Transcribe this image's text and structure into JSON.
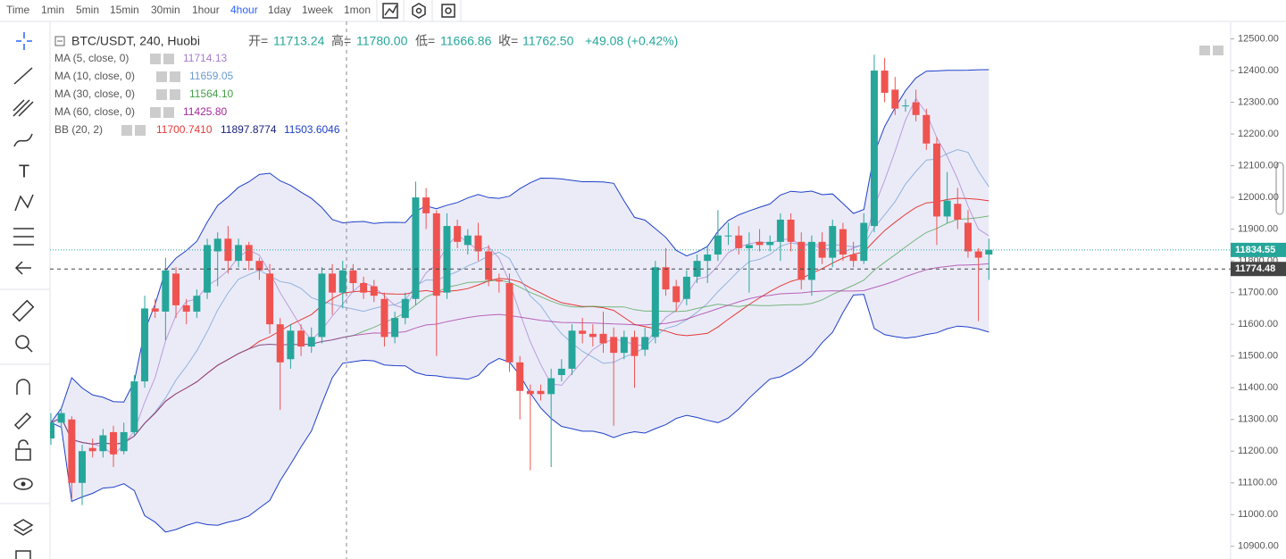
{
  "toolbar": {
    "items": [
      "Time",
      "1min",
      "5min",
      "15min",
      "30min",
      "1hour",
      "4hour",
      "1day",
      "1week",
      "1mon"
    ],
    "active": "4hour"
  },
  "legend": {
    "symbol": "BTC/USDT, 240, Huobi",
    "ohlc": [
      {
        "label": "开=",
        "value": "11713.24"
      },
      {
        "label": "高=",
        "value": "11780.00"
      },
      {
        "label": "低=",
        "value": "11666.86"
      },
      {
        "label": "收=",
        "value": "11762.50"
      }
    ],
    "change": "+49.08 (+0.42%)",
    "indicators": [
      {
        "name": "MA (5, close, 0)",
        "values": [
          "11714.13"
        ],
        "colors": [
          "#a77ccf"
        ]
      },
      {
        "name": "MA (10, close, 0)",
        "values": [
          "11659.05"
        ],
        "colors": [
          "#6b9bd1"
        ]
      },
      {
        "name": "MA (30, close, 0)",
        "values": [
          "11564.10"
        ],
        "colors": [
          "#43a047"
        ]
      },
      {
        "name": "MA (60, close, 0)",
        "values": [
          "11425.80"
        ],
        "colors": [
          "#a4279c"
        ]
      },
      {
        "name": "BB (20, 2)",
        "values": [
          "11700.7410",
          "11897.8774",
          "11503.6046"
        ],
        "colors": [
          "#e53935",
          "#1a237e",
          "#1e40c8"
        ]
      }
    ]
  },
  "chart_data": {
    "type": "candlestick",
    "up_color": "#26a69a",
    "down_color": "#ef5350",
    "ylim": [
      10860,
      12555
    ],
    "yticks": [
      {
        "value": 12500,
        "label": "12500.00"
      },
      {
        "value": 12400,
        "label": "12400.00"
      },
      {
        "value": 12300,
        "label": "12300.00"
      },
      {
        "value": 12200,
        "label": "12200.00"
      },
      {
        "value": 12100,
        "label": "12100.00"
      },
      {
        "value": 12000,
        "label": "12000.00"
      },
      {
        "value": 11900,
        "label": "11900.00"
      },
      {
        "value": 11800,
        "label": "11800.00"
      },
      {
        "value": 11700,
        "label": "11700.00"
      },
      {
        "value": 11600,
        "label": "11600.00"
      },
      {
        "value": 11500,
        "label": "11500.00"
      },
      {
        "value": 11400,
        "label": "11400.00"
      },
      {
        "value": 11300,
        "label": "11300.00"
      },
      {
        "value": 11200,
        "label": "11200.00"
      },
      {
        "value": 11100,
        "label": "11100.00"
      },
      {
        "value": 11000,
        "label": "11000.00"
      },
      {
        "value": 10900,
        "label": "10900.00"
      }
    ],
    "price_lines": [
      {
        "value": 11834.55,
        "color": "#26a69a"
      },
      {
        "value": 11774.48,
        "color": "#444444"
      }
    ],
    "open": [
      11240,
      11290,
      11300,
      11100,
      11210,
      11200,
      11260,
      11200,
      11260,
      11420,
      11650,
      11640,
      11760,
      11660,
      11640,
      11700,
      11830,
      11870,
      11800,
      11850,
      11800,
      11760,
      11600,
      11490,
      11580,
      11530,
      11560,
      11760,
      11700,
      11770,
      11730,
      11720,
      11680,
      11560,
      11620,
      11680,
      12000,
      11950,
      11700,
      11910,
      11850,
      11880,
      11830,
      11740,
      11730,
      11480,
      11390,
      11390,
      11380,
      11440,
      11460,
      11580,
      11570,
      11570,
      11560,
      11510,
      11560,
      11520,
      11560,
      11780,
      11720,
      11680,
      11750,
      11800,
      11820,
      11880,
      11880,
      11840,
      11860,
      11850,
      11860,
      11930,
      11860,
      11740,
      11860,
      11810,
      11900,
      11820,
      11800,
      11910,
      12400,
      12340,
      12290,
      12300,
      12260,
      12170,
      11940,
      11980,
      11920,
      11830,
      11820
    ],
    "high": [
      11320,
      11340,
      11310,
      11220,
      11240,
      11270,
      11280,
      11290,
      11440,
      11690,
      11680,
      11810,
      11780,
      11680,
      11710,
      11870,
      11890,
      11910,
      11870,
      11860,
      11810,
      11790,
      11620,
      11600,
      11600,
      11590,
      11780,
      11790,
      11800,
      11790,
      11750,
      11740,
      11700,
      11640,
      11700,
      12050,
      12030,
      11960,
      11950,
      11930,
      11900,
      11920,
      11850,
      11760,
      11760,
      11500,
      11410,
      11410,
      11460,
      11490,
      11600,
      11620,
      11600,
      11640,
      11590,
      11580,
      11580,
      11590,
      11800,
      11840,
      11740,
      11770,
      11820,
      11850,
      11960,
      11920,
      11910,
      11890,
      11900,
      11880,
      11950,
      11950,
      11890,
      11880,
      11890,
      11930,
      11920,
      11860,
      11950,
      12450,
      12440,
      12380,
      12310,
      12340,
      12280,
      12190,
      12080,
      12030,
      11960,
      11840,
      11870
    ],
    "low": [
      11220,
      11270,
      11050,
      11030,
      11180,
      11180,
      11150,
      11190,
      11250,
      11400,
      11620,
      11550,
      11620,
      11600,
      11620,
      11680,
      11720,
      11760,
      11780,
      11770,
      11740,
      11570,
      11330,
      11460,
      11500,
      11510,
      11540,
      11630,
      11650,
      11700,
      11680,
      11670,
      11530,
      11540,
      11600,
      11660,
      11900,
      11500,
      11680,
      11840,
      11820,
      11800,
      11720,
      11700,
      11450,
      11300,
      11140,
      11360,
      11150,
      11420,
      11440,
      11540,
      11530,
      11510,
      11280,
      11490,
      11400,
      11500,
      11540,
      11690,
      11640,
      11660,
      11730,
      11730,
      11800,
      11850,
      11820,
      11700,
      11830,
      11830,
      11800,
      11830,
      11710,
      11690,
      11790,
      11780,
      11800,
      11780,
      11790,
      11890,
      12300,
      12260,
      12270,
      12240,
      12150,
      11850,
      11920,
      11900,
      11810,
      11610,
      11740
    ],
    "close": [
      11290,
      11320,
      11100,
      11200,
      11200,
      11250,
      11190,
      11260,
      11420,
      11650,
      11640,
      11770,
      11660,
      11640,
      11690,
      11850,
      11870,
      11800,
      11850,
      11800,
      11770,
      11600,
      11480,
      11580,
      11530,
      11560,
      11760,
      11700,
      11770,
      11730,
      11700,
      11690,
      11560,
      11620,
      11680,
      12000,
      11950,
      11690,
      11910,
      11860,
      11880,
      11830,
      11740,
      11735,
      11480,
      11390,
      11380,
      11380,
      11430,
      11460,
      11580,
      11570,
      11560,
      11540,
      11510,
      11560,
      11500,
      11560,
      11780,
      11710,
      11670,
      11750,
      11800,
      11820,
      11880,
      11880,
      11840,
      11850,
      11850,
      11860,
      11930,
      11860,
      11740,
      11860,
      11810,
      11910,
      11820,
      11800,
      11920,
      12400,
      12330,
      12280,
      12290,
      12260,
      12170,
      11940,
      11990,
      11930,
      11830,
      11810,
      11835
    ]
  }
}
